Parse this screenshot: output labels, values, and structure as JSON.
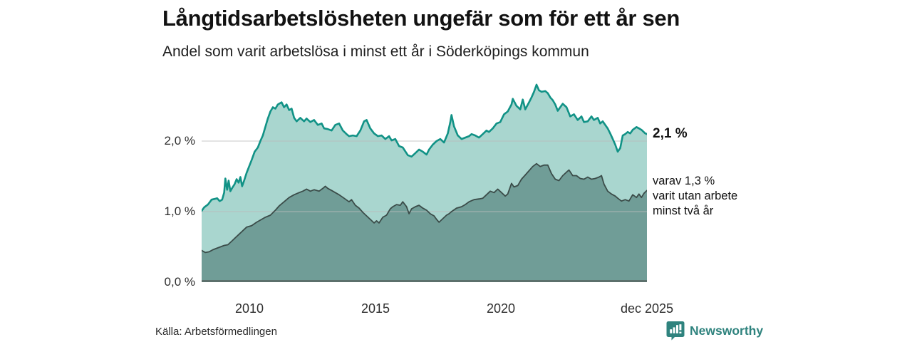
{
  "title": "Långtidsarbetslösheten ungefär som för ett år sen",
  "subtitle": "Andel som varit arbetslösa i minst ett år i Söderköpings kommun",
  "source": "Källa: Arbetsförmedlingen",
  "branding": {
    "name": "Newsworthy",
    "color": "#2f837e"
  },
  "annotations": {
    "total_end_label": "2,1 %",
    "subset_line1": "varav 1,3 %",
    "subset_line2": "varit utan arbete",
    "subset_line3": "minst två år"
  },
  "axes": {
    "y_ticks": [
      "2,0 %",
      "1,0 %",
      "0,0 %"
    ],
    "x_ticks": [
      {
        "label": "2010",
        "year": 2010
      },
      {
        "label": "2015",
        "year": 2015
      },
      {
        "label": "2020",
        "year": 2020
      },
      {
        "label": "dec 2025",
        "year": 2025.92
      }
    ]
  },
  "chart_data": {
    "type": "area",
    "title": "Långtidsarbetslösheten ungefär som för ett år sen",
    "subtitle": "Andel som varit arbetslösa i minst ett år i Söderköpings kommun",
    "x_unit": "decimal year (monthly data, ca 2008–dec 2025)",
    "y_unit": "percent",
    "x_range": [
      2008.1,
      2025.92
    ],
    "y_range_pct": [
      0,
      2.93
    ],
    "grid_values_pct": [
      1.0,
      2.0
    ],
    "grid_color": "#bcbcbc",
    "baseline_color": "#5c706c",
    "series": [
      {
        "id": "total",
        "name": "Andel arbetslösa minst ett år",
        "end_value_pct": 2.1,
        "line_color": "#119286",
        "fill_color": "#a9d6cf",
        "line_width": 2.6,
        "points": [
          [
            2008.1,
            1.01
          ],
          [
            2008.2,
            1.06
          ],
          [
            2008.35,
            1.1
          ],
          [
            2008.5,
            1.17
          ],
          [
            2008.62,
            1.18
          ],
          [
            2008.72,
            1.19
          ],
          [
            2008.82,
            1.15
          ],
          [
            2008.92,
            1.17
          ],
          [
            2009.0,
            1.27
          ],
          [
            2009.05,
            1.47
          ],
          [
            2009.12,
            1.31
          ],
          [
            2009.18,
            1.44
          ],
          [
            2009.25,
            1.29
          ],
          [
            2009.33,
            1.34
          ],
          [
            2009.42,
            1.39
          ],
          [
            2009.5,
            1.46
          ],
          [
            2009.58,
            1.41
          ],
          [
            2009.65,
            1.49
          ],
          [
            2009.72,
            1.36
          ],
          [
            2009.8,
            1.44
          ],
          [
            2009.9,
            1.55
          ],
          [
            2010.0,
            1.64
          ],
          [
            2010.1,
            1.73
          ],
          [
            2010.22,
            1.85
          ],
          [
            2010.35,
            1.91
          ],
          [
            2010.45,
            2.0
          ],
          [
            2010.55,
            2.08
          ],
          [
            2010.65,
            2.2
          ],
          [
            2010.75,
            2.32
          ],
          [
            2010.85,
            2.42
          ],
          [
            2010.95,
            2.48
          ],
          [
            2011.05,
            2.46
          ],
          [
            2011.15,
            2.52
          ],
          [
            2011.3,
            2.55
          ],
          [
            2011.4,
            2.48
          ],
          [
            2011.5,
            2.52
          ],
          [
            2011.6,
            2.44
          ],
          [
            2011.7,
            2.46
          ],
          [
            2011.8,
            2.33
          ],
          [
            2011.9,
            2.28
          ],
          [
            2012.05,
            2.33
          ],
          [
            2012.2,
            2.28
          ],
          [
            2012.3,
            2.32
          ],
          [
            2012.45,
            2.27
          ],
          [
            2012.6,
            2.3
          ],
          [
            2012.75,
            2.23
          ],
          [
            2012.9,
            2.25
          ],
          [
            2013.0,
            2.18
          ],
          [
            2013.15,
            2.17
          ],
          [
            2013.3,
            2.15
          ],
          [
            2013.45,
            2.23
          ],
          [
            2013.6,
            2.25
          ],
          [
            2013.75,
            2.15
          ],
          [
            2013.9,
            2.1
          ],
          [
            2014.0,
            2.07
          ],
          [
            2014.15,
            2.08
          ],
          [
            2014.3,
            2.07
          ],
          [
            2014.45,
            2.15
          ],
          [
            2014.6,
            2.28
          ],
          [
            2014.7,
            2.3
          ],
          [
            2014.85,
            2.18
          ],
          [
            2015.0,
            2.11
          ],
          [
            2015.15,
            2.07
          ],
          [
            2015.3,
            2.08
          ],
          [
            2015.45,
            2.03
          ],
          [
            2015.6,
            2.07
          ],
          [
            2015.7,
            2.01
          ],
          [
            2015.85,
            2.03
          ],
          [
            2016.0,
            1.93
          ],
          [
            2016.15,
            1.91
          ],
          [
            2016.35,
            1.8
          ],
          [
            2016.5,
            1.78
          ],
          [
            2016.65,
            1.83
          ],
          [
            2016.8,
            1.88
          ],
          [
            2016.95,
            1.85
          ],
          [
            2017.1,
            1.81
          ],
          [
            2017.2,
            1.88
          ],
          [
            2017.35,
            1.95
          ],
          [
            2017.5,
            2.0
          ],
          [
            2017.65,
            2.03
          ],
          [
            2017.8,
            1.98
          ],
          [
            2017.95,
            2.11
          ],
          [
            2018.05,
            2.27
          ],
          [
            2018.1,
            2.37
          ],
          [
            2018.2,
            2.21
          ],
          [
            2018.35,
            2.08
          ],
          [
            2018.5,
            2.03
          ],
          [
            2018.65,
            2.05
          ],
          [
            2018.8,
            2.07
          ],
          [
            2018.9,
            2.1
          ],
          [
            2019.05,
            2.08
          ],
          [
            2019.2,
            2.05
          ],
          [
            2019.35,
            2.1
          ],
          [
            2019.5,
            2.15
          ],
          [
            2019.6,
            2.13
          ],
          [
            2019.75,
            2.18
          ],
          [
            2019.9,
            2.25
          ],
          [
            2020.05,
            2.27
          ],
          [
            2020.2,
            2.38
          ],
          [
            2020.35,
            2.42
          ],
          [
            2020.5,
            2.52
          ],
          [
            2020.55,
            2.6
          ],
          [
            2020.7,
            2.5
          ],
          [
            2020.85,
            2.45
          ],
          [
            2020.95,
            2.59
          ],
          [
            2021.05,
            2.45
          ],
          [
            2021.2,
            2.55
          ],
          [
            2021.3,
            2.62
          ],
          [
            2021.4,
            2.7
          ],
          [
            2021.5,
            2.8
          ],
          [
            2021.6,
            2.72
          ],
          [
            2021.7,
            2.7
          ],
          [
            2021.85,
            2.71
          ],
          [
            2021.95,
            2.68
          ],
          [
            2022.05,
            2.62
          ],
          [
            2022.15,
            2.58
          ],
          [
            2022.25,
            2.52
          ],
          [
            2022.35,
            2.43
          ],
          [
            2022.45,
            2.48
          ],
          [
            2022.55,
            2.53
          ],
          [
            2022.7,
            2.48
          ],
          [
            2022.85,
            2.35
          ],
          [
            2023.0,
            2.38
          ],
          [
            2023.15,
            2.3
          ],
          [
            2023.3,
            2.35
          ],
          [
            2023.4,
            2.27
          ],
          [
            2023.55,
            2.28
          ],
          [
            2023.7,
            2.35
          ],
          [
            2023.8,
            2.3
          ],
          [
            2023.95,
            2.33
          ],
          [
            2024.05,
            2.25
          ],
          [
            2024.15,
            2.28
          ],
          [
            2024.25,
            2.23
          ],
          [
            2024.35,
            2.18
          ],
          [
            2024.45,
            2.11
          ],
          [
            2024.55,
            2.03
          ],
          [
            2024.65,
            1.95
          ],
          [
            2024.75,
            1.85
          ],
          [
            2024.85,
            1.9
          ],
          [
            2024.95,
            2.08
          ],
          [
            2025.05,
            2.1
          ],
          [
            2025.15,
            2.13
          ],
          [
            2025.25,
            2.11
          ],
          [
            2025.35,
            2.16
          ],
          [
            2025.5,
            2.2
          ],
          [
            2025.6,
            2.18
          ],
          [
            2025.7,
            2.16
          ],
          [
            2025.85,
            2.11
          ],
          [
            2025.92,
            2.1
          ]
        ]
      },
      {
        "id": "two-years",
        "name": "varav utan arbete minst två år",
        "end_value_pct": 1.3,
        "line_color": "#3b4c49",
        "fill_color": "#709d97",
        "line_width": 1.8,
        "points": [
          [
            2008.1,
            0.45
          ],
          [
            2008.25,
            0.42
          ],
          [
            2008.4,
            0.43
          ],
          [
            2008.55,
            0.46
          ],
          [
            2008.7,
            0.48
          ],
          [
            2008.85,
            0.5
          ],
          [
            2009.0,
            0.52
          ],
          [
            2009.15,
            0.53
          ],
          [
            2009.3,
            0.58
          ],
          [
            2009.45,
            0.63
          ],
          [
            2009.6,
            0.68
          ],
          [
            2009.75,
            0.73
          ],
          [
            2009.9,
            0.78
          ],
          [
            2010.1,
            0.8
          ],
          [
            2010.3,
            0.85
          ],
          [
            2010.5,
            0.89
          ],
          [
            2010.65,
            0.92
          ],
          [
            2010.85,
            0.95
          ],
          [
            2011.05,
            1.02
          ],
          [
            2011.2,
            1.08
          ],
          [
            2011.4,
            1.14
          ],
          [
            2011.6,
            1.2
          ],
          [
            2011.8,
            1.24
          ],
          [
            2012.0,
            1.27
          ],
          [
            2012.15,
            1.29
          ],
          [
            2012.3,
            1.32
          ],
          [
            2012.45,
            1.29
          ],
          [
            2012.6,
            1.31
          ],
          [
            2012.8,
            1.29
          ],
          [
            2012.95,
            1.33
          ],
          [
            2013.05,
            1.36
          ],
          [
            2013.15,
            1.33
          ],
          [
            2013.3,
            1.3
          ],
          [
            2013.45,
            1.27
          ],
          [
            2013.6,
            1.24
          ],
          [
            2013.8,
            1.19
          ],
          [
            2014.0,
            1.14
          ],
          [
            2014.1,
            1.17
          ],
          [
            2014.25,
            1.09
          ],
          [
            2014.4,
            1.05
          ],
          [
            2014.55,
            0.99
          ],
          [
            2014.7,
            0.94
          ],
          [
            2014.85,
            0.89
          ],
          [
            2015.0,
            0.84
          ],
          [
            2015.1,
            0.87
          ],
          [
            2015.2,
            0.84
          ],
          [
            2015.35,
            0.92
          ],
          [
            2015.5,
            0.95
          ],
          [
            2015.65,
            1.04
          ],
          [
            2015.75,
            1.07
          ],
          [
            2015.9,
            1.1
          ],
          [
            2016.05,
            1.09
          ],
          [
            2016.15,
            1.14
          ],
          [
            2016.3,
            1.07
          ],
          [
            2016.4,
            0.97
          ],
          [
            2016.5,
            1.04
          ],
          [
            2016.65,
            1.07
          ],
          [
            2016.8,
            1.09
          ],
          [
            2016.95,
            1.05
          ],
          [
            2017.1,
            1.02
          ],
          [
            2017.25,
            0.97
          ],
          [
            2017.4,
            0.94
          ],
          [
            2017.5,
            0.89
          ],
          [
            2017.6,
            0.85
          ],
          [
            2017.75,
            0.9
          ],
          [
            2017.9,
            0.95
          ],
          [
            2018.0,
            0.97
          ],
          [
            2018.1,
            1.0
          ],
          [
            2018.3,
            1.05
          ],
          [
            2018.5,
            1.07
          ],
          [
            2018.65,
            1.1
          ],
          [
            2018.8,
            1.14
          ],
          [
            2019.0,
            1.17
          ],
          [
            2019.2,
            1.18
          ],
          [
            2019.35,
            1.19
          ],
          [
            2019.5,
            1.24
          ],
          [
            2019.65,
            1.29
          ],
          [
            2019.8,
            1.27
          ],
          [
            2019.95,
            1.32
          ],
          [
            2020.1,
            1.27
          ],
          [
            2020.25,
            1.22
          ],
          [
            2020.35,
            1.25
          ],
          [
            2020.5,
            1.4
          ],
          [
            2020.6,
            1.35
          ],
          [
            2020.75,
            1.37
          ],
          [
            2020.9,
            1.46
          ],
          [
            2021.05,
            1.52
          ],
          [
            2021.2,
            1.58
          ],
          [
            2021.35,
            1.64
          ],
          [
            2021.5,
            1.68
          ],
          [
            2021.65,
            1.64
          ],
          [
            2021.8,
            1.66
          ],
          [
            2021.95,
            1.66
          ],
          [
            2022.1,
            1.54
          ],
          [
            2022.25,
            1.46
          ],
          [
            2022.4,
            1.44
          ],
          [
            2022.55,
            1.51
          ],
          [
            2022.7,
            1.56
          ],
          [
            2022.8,
            1.59
          ],
          [
            2022.95,
            1.51
          ],
          [
            2023.1,
            1.51
          ],
          [
            2023.25,
            1.47
          ],
          [
            2023.4,
            1.46
          ],
          [
            2023.55,
            1.49
          ],
          [
            2023.7,
            1.46
          ],
          [
            2023.85,
            1.47
          ],
          [
            2024.0,
            1.49
          ],
          [
            2024.1,
            1.51
          ],
          [
            2024.2,
            1.39
          ],
          [
            2024.35,
            1.29
          ],
          [
            2024.5,
            1.25
          ],
          [
            2024.65,
            1.22
          ],
          [
            2024.75,
            1.19
          ],
          [
            2024.9,
            1.15
          ],
          [
            2025.05,
            1.17
          ],
          [
            2025.2,
            1.15
          ],
          [
            2025.35,
            1.24
          ],
          [
            2025.5,
            1.2
          ],
          [
            2025.6,
            1.25
          ],
          [
            2025.7,
            1.2
          ],
          [
            2025.8,
            1.26
          ],
          [
            2025.92,
            1.3
          ]
        ]
      }
    ]
  }
}
